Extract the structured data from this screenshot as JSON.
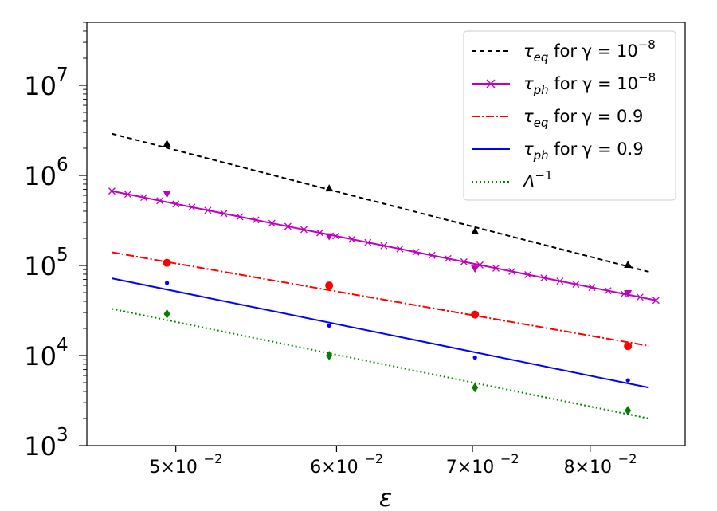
{
  "chart_data": {
    "type": "line",
    "xscale": "log",
    "yscale": "log",
    "xlabel": "ε",
    "xlim": [
      0.0452,
      0.0891
    ],
    "ylim": [
      1000,
      50000000
    ],
    "xticks": [
      {
        "value": 0.05,
        "mant": "5×10",
        "exp": "−2"
      },
      {
        "value": 0.06,
        "mant": "6×10",
        "exp": "−2"
      },
      {
        "value": 0.07,
        "mant": "7×10",
        "exp": "−2"
      },
      {
        "value": 0.08,
        "mant": "8×10",
        "exp": "−2"
      }
    ],
    "yticks": [
      {
        "value": 1000,
        "base": "10",
        "exp": "3"
      },
      {
        "value": 10000,
        "base": "10",
        "exp": "4"
      },
      {
        "value": 100000,
        "base": "10",
        "exp": "5"
      },
      {
        "value": 1000000,
        "base": "10",
        "exp": "6"
      },
      {
        "value": 10000000,
        "base": "10",
        "exp": "7"
      }
    ],
    "series": [
      {
        "name": "τ_eq for γ = 10^-8",
        "sym": "τ",
        "sub": "eq",
        "mid": " for γ = 10",
        "sup": "−8",
        "color": "#000000",
        "dash": "6,4",
        "marker": "x_none",
        "point_marker": "triangle-up",
        "line": [
          {
            "x": 0.0465,
            "y": 2900000
          },
          {
            "x": 0.0855,
            "y": 85000
          }
        ],
        "points": [
          {
            "x": 0.0495,
            "y": 2250000
          },
          {
            "x": 0.0595,
            "y": 720000
          },
          {
            "x": 0.0702,
            "y": 240000
          },
          {
            "x": 0.0835,
            "y": 102000
          }
        ]
      },
      {
        "name": "τ_ph for γ = 10^-8",
        "sym": "τ",
        "sub": "ph",
        "mid": " for γ = 10",
        "sup": "−8",
        "color": "#bf00bf",
        "dash": "",
        "marker": "x",
        "point_marker": "triangle-down",
        "line": [
          {
            "x": 0.0465,
            "y": 670000
          },
          {
            "x": 0.0862,
            "y": 41000
          }
        ],
        "points": [
          {
            "x": 0.0495,
            "y": 620000
          },
          {
            "x": 0.0595,
            "y": 210000
          },
          {
            "x": 0.0702,
            "y": 92000
          },
          {
            "x": 0.0835,
            "y": 49000
          }
        ]
      },
      {
        "name": "τ_eq for γ = 0.9",
        "sym": "τ",
        "sub": "eq",
        "mid": " for γ = 0.9",
        "sup": "",
        "color": "#ff0000",
        "dash": "10,3,2,3",
        "marker": "",
        "point_marker": "circle",
        "line": [
          {
            "x": 0.0465,
            "y": 140000
          },
          {
            "x": 0.0855,
            "y": 12800
          }
        ],
        "points": [
          {
            "x": 0.0495,
            "y": 107000
          },
          {
            "x": 0.0595,
            "y": 60000
          },
          {
            "x": 0.0702,
            "y": 28500
          },
          {
            "x": 0.0835,
            "y": 12700
          }
        ]
      },
      {
        "name": "τ_ph for γ = 0.9",
        "sym": "τ",
        "sub": "ph",
        "mid": " for γ = 0.9",
        "sup": "",
        "color": "#0000ff",
        "dash": "",
        "marker": "",
        "point_marker": "dot",
        "line": [
          {
            "x": 0.0465,
            "y": 72000
          },
          {
            "x": 0.0855,
            "y": 4400
          }
        ],
        "points": [
          {
            "x": 0.0495,
            "y": 64000
          },
          {
            "x": 0.0595,
            "y": 21500
          },
          {
            "x": 0.0702,
            "y": 9500
          },
          {
            "x": 0.0835,
            "y": 5300
          }
        ]
      },
      {
        "name": "Λ^-1",
        "sym": "Λ",
        "sub": "",
        "mid": "",
        "sup": "−1",
        "color": "#008000",
        "dash": "2,3",
        "marker": "",
        "point_marker": "diamond",
        "line": [
          {
            "x": 0.0465,
            "y": 33000
          },
          {
            "x": 0.0855,
            "y": 2000
          }
        ],
        "points": [
          {
            "x": 0.0495,
            "y": 29000
          },
          {
            "x": 0.0595,
            "y": 10000
          },
          {
            "x": 0.0702,
            "y": 4400
          },
          {
            "x": 0.0835,
            "y": 2450
          }
        ]
      }
    ],
    "legend_position": "top-right"
  }
}
